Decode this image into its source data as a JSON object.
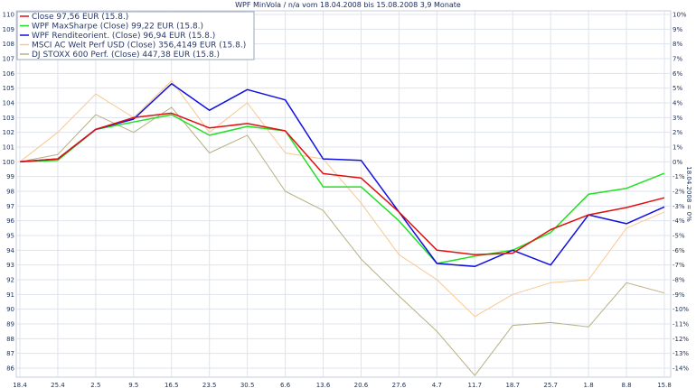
{
  "chart_data": {
    "type": "line",
    "title": "WPF MinVola / n/a vom 18.04.2008 bis 15.08.2008 3,9 Monate",
    "ylabel_right": "18.04.2008 = 0%",
    "x": [
      "18.4",
      "25.4",
      "2.5",
      "9.5",
      "16.5",
      "23.5",
      "30.5",
      "6.6",
      "13.6",
      "20.6",
      "27.6",
      "4.7",
      "11.7",
      "18.7",
      "25.7",
      "1.8",
      "8.8",
      "15.8"
    ],
    "left_ticks": [
      "86",
      "87",
      "88",
      "89",
      "90",
      "91",
      "92",
      "93",
      "94",
      "95",
      "96",
      "97",
      "98",
      "99",
      "100",
      "101",
      "102",
      "103",
      "104",
      "105",
      "106",
      "107",
      "108",
      "109",
      "110"
    ],
    "right_ticks": [
      "-14%",
      "-13%",
      "-12%",
      "-11%",
      "-10%",
      "-9%",
      "-8%",
      "-7%",
      "-6%",
      "-5%",
      "-4%",
      "-3%",
      "-2%",
      "-1%",
      "0%",
      "1%",
      "2%",
      "3%",
      "4%",
      "5%",
      "6%",
      "7%",
      "8%",
      "9%",
      "10%"
    ],
    "ylim": [
      86,
      110
    ],
    "grid": true,
    "legend_position": "top-left",
    "series": [
      {
        "name": "Close 97,56 EUR (15.8.)",
        "color": "#e01010",
        "values": [
          100,
          100.2,
          102.2,
          103.0,
          103.3,
          102.3,
          102.6,
          102.1,
          99.2,
          98.9,
          96.6,
          94.0,
          93.7,
          93.8,
          95.4,
          96.4,
          96.9,
          97.56
        ]
      },
      {
        "name": "WPF MaxSharpe (Close) 99,22 EUR (15.8.)",
        "color": "#22e022",
        "values": [
          100,
          100.1,
          102.2,
          102.7,
          103.2,
          101.8,
          102.4,
          102.1,
          98.3,
          98.3,
          96.0,
          93.1,
          93.6,
          94.0,
          95.2,
          97.8,
          98.2,
          99.22
        ]
      },
      {
        "name": "WPF Renditeorient. (Close) 96,94 EUR (15.8.)",
        "color": "#1010e0",
        "values": [
          100,
          100.2,
          102.2,
          102.9,
          105.3,
          103.5,
          104.9,
          104.2,
          100.2,
          100.1,
          96.6,
          93.1,
          92.9,
          94.0,
          93.0,
          96.4,
          95.8,
          96.94
        ]
      },
      {
        "name": "MSCI AC Welt Perf USD (Close) 356,4149 EUR (15.8.)",
        "color": "#f8c890",
        "values": [
          100,
          102.0,
          104.6,
          103.0,
          105.5,
          102.0,
          104.0,
          100.6,
          100.2,
          97.2,
          93.7,
          92.0,
          89.5,
          91.0,
          91.8,
          92.0,
          95.5,
          96.6
        ]
      },
      {
        "name": "DJ STOXX 600 Perf. (Close) 447,38 EUR (15.8.)",
        "color": "#b8b080",
        "values": [
          100,
          100.5,
          103.2,
          102.0,
          103.7,
          100.6,
          101.8,
          98.0,
          96.7,
          93.4,
          90.9,
          88.5,
          85.5,
          88.9,
          89.1,
          88.8,
          91.8,
          91.1
        ]
      }
    ]
  }
}
